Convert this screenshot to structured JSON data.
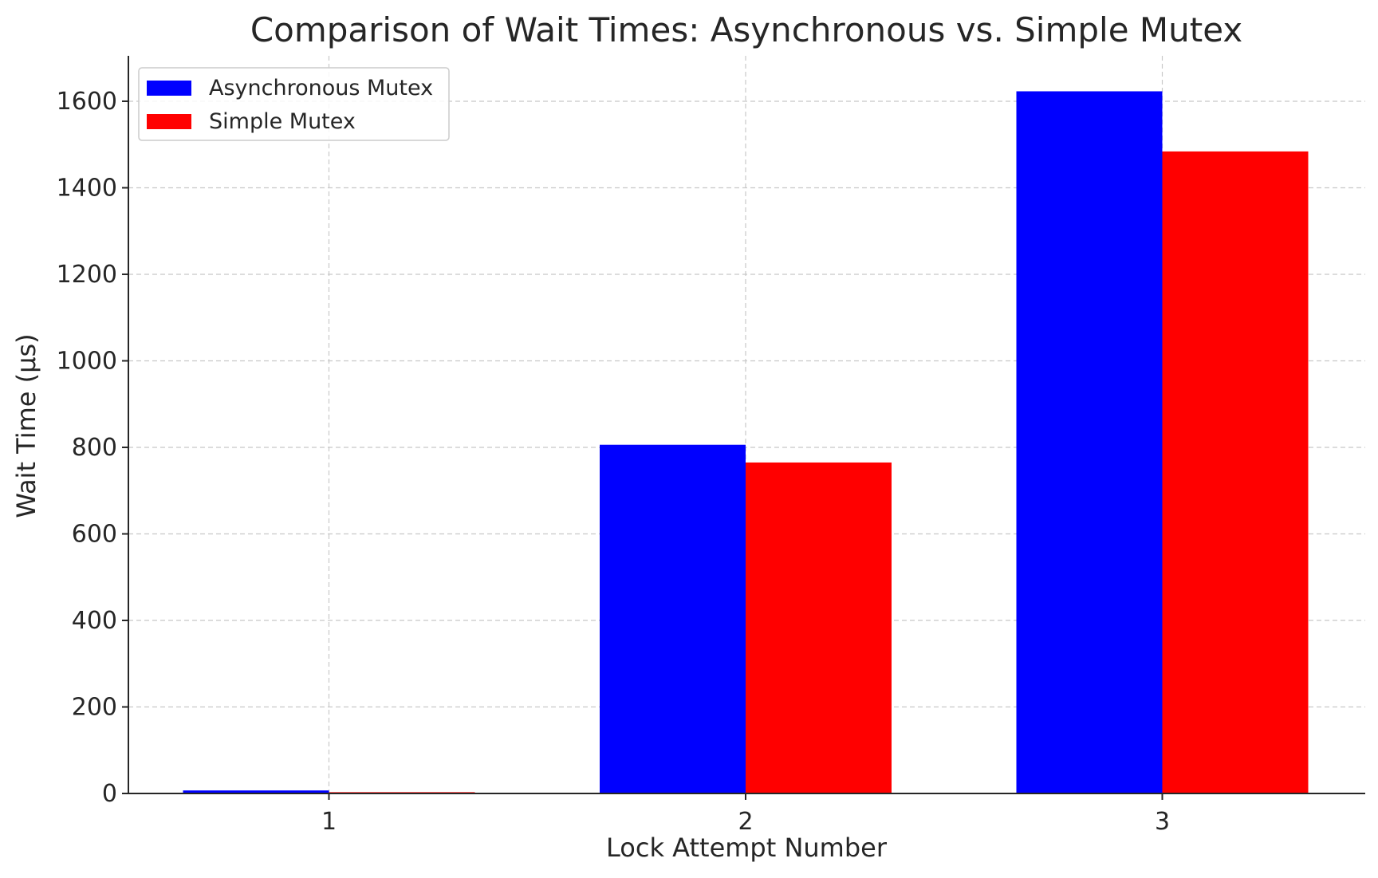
{
  "chart_data": {
    "type": "bar",
    "title": "Comparison of Wait Times: Asynchronous vs. Simple Mutex",
    "xlabel": "Lock Attempt Number",
    "ylabel": "Wait Time (µs)",
    "categories": [
      "1",
      "2",
      "3"
    ],
    "series": [
      {
        "name": "Asynchronous Mutex",
        "color": "#0000ff",
        "values": [
          7,
          806,
          1623
        ]
      },
      {
        "name": "Simple Mutex",
        "color": "#ff0000",
        "values": [
          3,
          765,
          1484
        ]
      }
    ],
    "ylim": [
      0,
      1705
    ],
    "yticks": [
      0,
      200,
      400,
      600,
      800,
      1000,
      1200,
      1400,
      1600
    ],
    "grid": true,
    "legend_position": "top-left"
  }
}
